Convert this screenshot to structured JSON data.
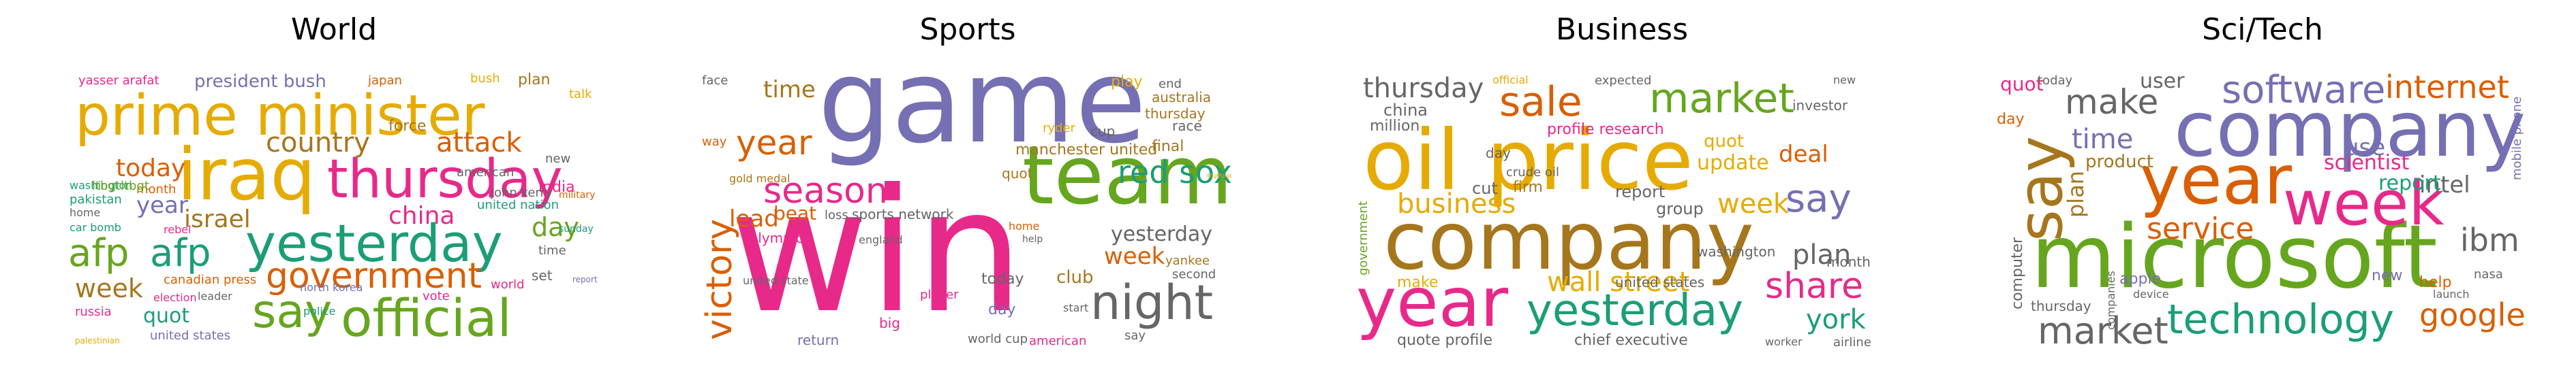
{
  "palette": {
    "pink": "#e7298a",
    "green": "#66a61e",
    "teal": "#1b9e77",
    "orange": "#d95f02",
    "purple": "#7570b3",
    "gold": "#e6ab02",
    "brown": "#a6761d",
    "gray": "#666666"
  },
  "panels": [
    {
      "title": "World",
      "words": [
        {
          "text": "prime minister",
          "color": "gold"
        },
        {
          "text": "iraq",
          "color": "gold"
        },
        {
          "text": "thursday",
          "color": "pink"
        },
        {
          "text": "yesterday",
          "color": "teal"
        },
        {
          "text": "government",
          "color": "orange"
        },
        {
          "text": "official",
          "color": "green"
        },
        {
          "text": "say",
          "color": "green"
        },
        {
          "text": "afp",
          "color": "green"
        },
        {
          "text": "afp",
          "color": "teal"
        },
        {
          "text": "country",
          "color": "brown"
        },
        {
          "text": "attack",
          "color": "orange"
        },
        {
          "text": "israel",
          "color": "brown"
        },
        {
          "text": "china",
          "color": "pink"
        },
        {
          "text": "today",
          "color": "orange"
        },
        {
          "text": "week",
          "color": "brown"
        },
        {
          "text": "quot",
          "color": "teal"
        },
        {
          "text": "year",
          "color": "purple"
        },
        {
          "text": "day",
          "color": "green"
        },
        {
          "text": "president bush",
          "color": "purple"
        },
        {
          "text": "yasser arafat",
          "color": "pink"
        },
        {
          "text": "japan",
          "color": "orange"
        },
        {
          "text": "bush",
          "color": "gold"
        },
        {
          "text": "plan",
          "color": "brown"
        },
        {
          "text": "talk",
          "color": "gold"
        },
        {
          "text": "force",
          "color": "brown"
        },
        {
          "text": "military",
          "color": "orange"
        },
        {
          "text": "india",
          "color": "pink"
        },
        {
          "text": "american",
          "color": "gray"
        },
        {
          "text": "john kerry",
          "color": "gray"
        },
        {
          "text": "united nation",
          "color": "teal"
        },
        {
          "text": "month",
          "color": "orange"
        },
        {
          "text": "washington",
          "color": "teal"
        },
        {
          "text": "pakistan",
          "color": "teal"
        },
        {
          "text": "home",
          "color": "gray"
        },
        {
          "text": "car bomb",
          "color": "teal"
        },
        {
          "text": "rebel",
          "color": "pink"
        },
        {
          "text": "election",
          "color": "pink"
        },
        {
          "text": "canadian press",
          "color": "orange"
        },
        {
          "text": "north korea",
          "color": "purple"
        },
        {
          "text": "leader",
          "color": "gray"
        },
        {
          "text": "russia",
          "color": "pink"
        },
        {
          "text": "united states",
          "color": "purple"
        },
        {
          "text": "police",
          "color": "teal"
        },
        {
          "text": "vote",
          "color": "pink"
        },
        {
          "text": "world",
          "color": "pink"
        },
        {
          "text": "report",
          "color": "purple"
        },
        {
          "text": "set",
          "color": "gray"
        },
        {
          "text": "time",
          "color": "gray"
        },
        {
          "text": "new",
          "color": "gray"
        },
        {
          "text": "ltbgtltbgt",
          "color": "green"
        },
        {
          "text": "sunday",
          "color": "teal"
        },
        {
          "text": "palestinian",
          "color": "gold"
        }
      ]
    },
    {
      "title": "Sports",
      "words": [
        {
          "text": "game",
          "color": "purple"
        },
        {
          "text": "win",
          "color": "pink"
        },
        {
          "text": "team",
          "color": "green"
        },
        {
          "text": "night",
          "color": "gray"
        },
        {
          "text": "season",
          "color": "pink"
        },
        {
          "text": "year",
          "color": "orange"
        },
        {
          "text": "victory",
          "color": "orange"
        },
        {
          "text": "red sox",
          "color": "teal"
        },
        {
          "text": "lead",
          "color": "orange"
        },
        {
          "text": "time",
          "color": "brown"
        },
        {
          "text": "yesterday",
          "color": "gray"
        },
        {
          "text": "week",
          "color": "orange"
        },
        {
          "text": "play",
          "color": "gold"
        },
        {
          "text": "australia",
          "color": "brown"
        },
        {
          "text": "thursday",
          "color": "brown"
        },
        {
          "text": "manchester united",
          "color": "brown"
        },
        {
          "text": "final",
          "color": "brown"
        },
        {
          "text": "sports network",
          "color": "gray"
        },
        {
          "text": "quot",
          "color": "brown"
        },
        {
          "text": "olympic",
          "color": "pink"
        },
        {
          "text": "beat",
          "color": "orange"
        },
        {
          "text": "gold medal",
          "color": "brown"
        },
        {
          "text": "loss",
          "color": "gray"
        },
        {
          "text": "face",
          "color": "gray"
        },
        {
          "text": "way",
          "color": "orange"
        },
        {
          "text": "race",
          "color": "gray"
        },
        {
          "text": "cup",
          "color": "gray"
        },
        {
          "text": "ryder",
          "color": "gold"
        },
        {
          "text": "end",
          "color": "gray"
        },
        {
          "text": "world cup",
          "color": "gray"
        },
        {
          "text": "yankee",
          "color": "brown"
        },
        {
          "text": "second",
          "color": "gray"
        },
        {
          "text": "today",
          "color": "gray"
        },
        {
          "text": "club",
          "color": "brown"
        },
        {
          "text": "day",
          "color": "purple"
        },
        {
          "text": "american",
          "color": "pink"
        },
        {
          "text": "return",
          "color": "purple"
        },
        {
          "text": "say",
          "color": "gray"
        },
        {
          "text": "player",
          "color": "pink"
        },
        {
          "text": "england",
          "color": "gray"
        },
        {
          "text": "big",
          "color": "pink"
        },
        {
          "text": "united state",
          "color": "gray"
        },
        {
          "text": "home",
          "color": "orange"
        },
        {
          "text": "start",
          "color": "gray"
        },
        {
          "text": "ltbgtltbgt",
          "color": "gold"
        },
        {
          "text": "help",
          "color": "gray"
        }
      ]
    },
    {
      "title": "Business",
      "words": [
        {
          "text": "oil price",
          "color": "gold"
        },
        {
          "text": "company",
          "color": "brown"
        },
        {
          "text": "year",
          "color": "pink"
        },
        {
          "text": "yesterday",
          "color": "teal"
        },
        {
          "text": "sale",
          "color": "orange"
        },
        {
          "text": "market",
          "color": "green"
        },
        {
          "text": "thursday",
          "color": "gray"
        },
        {
          "text": "business",
          "color": "gold"
        },
        {
          "text": "week",
          "color": "gold"
        },
        {
          "text": "say",
          "color": "purple"
        },
        {
          "text": "share",
          "color": "pink"
        },
        {
          "text": "plan",
          "color": "gray"
        },
        {
          "text": "york",
          "color": "teal"
        },
        {
          "text": "wall street",
          "color": "gold"
        },
        {
          "text": "deal",
          "color": "orange"
        },
        {
          "text": "update",
          "color": "gold"
        },
        {
          "text": "quot",
          "color": "gold"
        },
        {
          "text": "profile research",
          "color": "pink"
        },
        {
          "text": "china",
          "color": "gray"
        },
        {
          "text": "million",
          "color": "gray"
        },
        {
          "text": "cut",
          "color": "gray"
        },
        {
          "text": "report",
          "color": "gray"
        },
        {
          "text": "group",
          "color": "gray"
        },
        {
          "text": "make",
          "color": "gold"
        },
        {
          "text": "quote profile",
          "color": "gray"
        },
        {
          "text": "chief executive",
          "color": "gray"
        },
        {
          "text": "united states",
          "color": "gray"
        },
        {
          "text": "investor",
          "color": "gray"
        },
        {
          "text": "month",
          "color": "gray"
        },
        {
          "text": "washington",
          "color": "gray"
        },
        {
          "text": "airline",
          "color": "gray"
        },
        {
          "text": "crude oil",
          "color": "gray"
        },
        {
          "text": "expected",
          "color": "gray"
        },
        {
          "text": "official",
          "color": "gold"
        },
        {
          "text": "day",
          "color": "gray"
        },
        {
          "text": "firm",
          "color": "brown"
        },
        {
          "text": "government",
          "color": "green"
        },
        {
          "text": "worker",
          "color": "gray"
        },
        {
          "text": "new",
          "color": "gray"
        }
      ]
    },
    {
      "title": "Sci/Tech",
      "words": [
        {
          "text": "company",
          "color": "purple"
        },
        {
          "text": "microsoft",
          "color": "green"
        },
        {
          "text": "year",
          "color": "orange"
        },
        {
          "text": "week",
          "color": "pink"
        },
        {
          "text": "say",
          "color": "brown"
        },
        {
          "text": "software",
          "color": "purple"
        },
        {
          "text": "internet",
          "color": "orange"
        },
        {
          "text": "technology",
          "color": "teal"
        },
        {
          "text": "google",
          "color": "orange"
        },
        {
          "text": "market",
          "color": "gray"
        },
        {
          "text": "service",
          "color": "orange"
        },
        {
          "text": "ibm",
          "color": "gray"
        },
        {
          "text": "make",
          "color": "gray"
        },
        {
          "text": "time",
          "color": "purple"
        },
        {
          "text": "scientist",
          "color": "pink"
        },
        {
          "text": "plan",
          "color": "brown"
        },
        {
          "text": "intel",
          "color": "gray"
        },
        {
          "text": "product",
          "color": "brown"
        },
        {
          "text": "use",
          "color": "purple"
        },
        {
          "text": "report",
          "color": "teal"
        },
        {
          "text": "user",
          "color": "gray"
        },
        {
          "text": "quot",
          "color": "pink"
        },
        {
          "text": "computer",
          "color": "gray"
        },
        {
          "text": "thursday",
          "color": "gray"
        },
        {
          "text": "day",
          "color": "orange"
        },
        {
          "text": "help",
          "color": "orange"
        },
        {
          "text": "apple",
          "color": "purple"
        },
        {
          "text": "new",
          "color": "purple"
        },
        {
          "text": "mobile phone",
          "color": "purple"
        },
        {
          "text": "today",
          "color": "gray"
        },
        {
          "text": "nasa",
          "color": "gray"
        },
        {
          "text": "companies",
          "color": "gray"
        },
        {
          "text": "device",
          "color": "gray"
        },
        {
          "text": "launch",
          "color": "gray"
        }
      ]
    }
  ]
}
